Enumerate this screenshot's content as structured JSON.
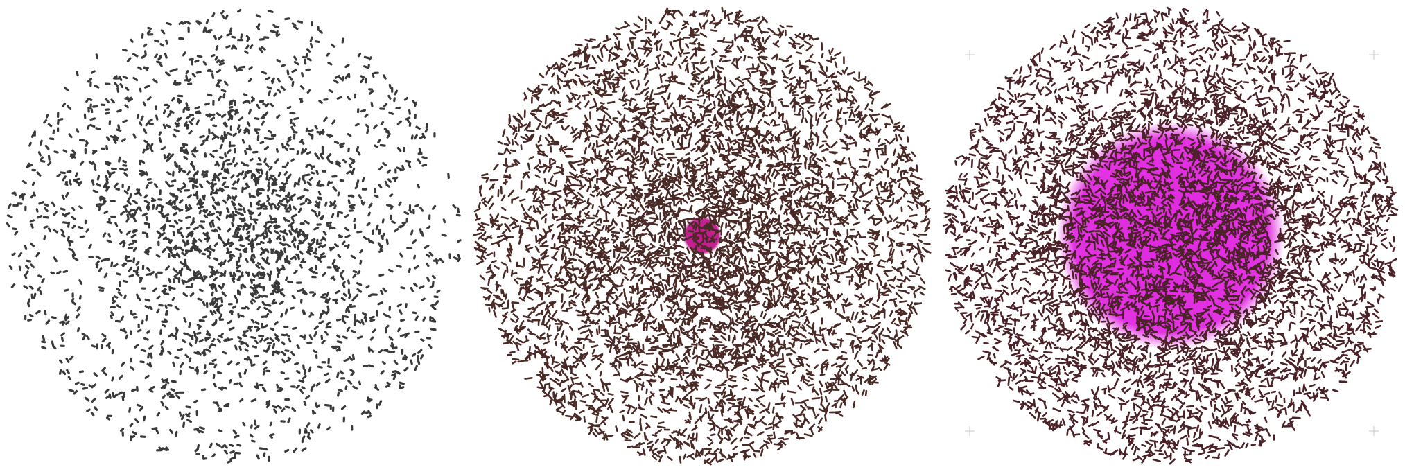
{
  "panels": [
    {
      "id": "panel-1",
      "description_name": "particle-disk-initial",
      "particle_color": "#3a3a3a",
      "inner_density": 1.0,
      "mid_density": 0.55,
      "outer_density": 0.28,
      "has_core": false,
      "core_color": "",
      "core_fraction": 0,
      "corner_marks": false
    },
    {
      "id": "panel-2",
      "description_name": "particle-disk-small-core",
      "particle_color": "#4a2a26",
      "inner_density": 1.0,
      "mid_density": 0.75,
      "outer_density": 0.45,
      "has_core": true,
      "core_color": "#c2188c",
      "core_fraction": 0.13,
      "corner_marks": false
    },
    {
      "id": "panel-3",
      "description_name": "particle-disk-large-core",
      "particle_color": "#4a2228",
      "inner_density": 1.0,
      "mid_density": 0.8,
      "outer_density": 0.45,
      "has_core": true,
      "core_color": "#e028e0",
      "core_fraction": 0.76,
      "corner_marks": true
    }
  ],
  "colors": {
    "background": "#ffffff",
    "corner_mark": "#c8c8c8"
  }
}
